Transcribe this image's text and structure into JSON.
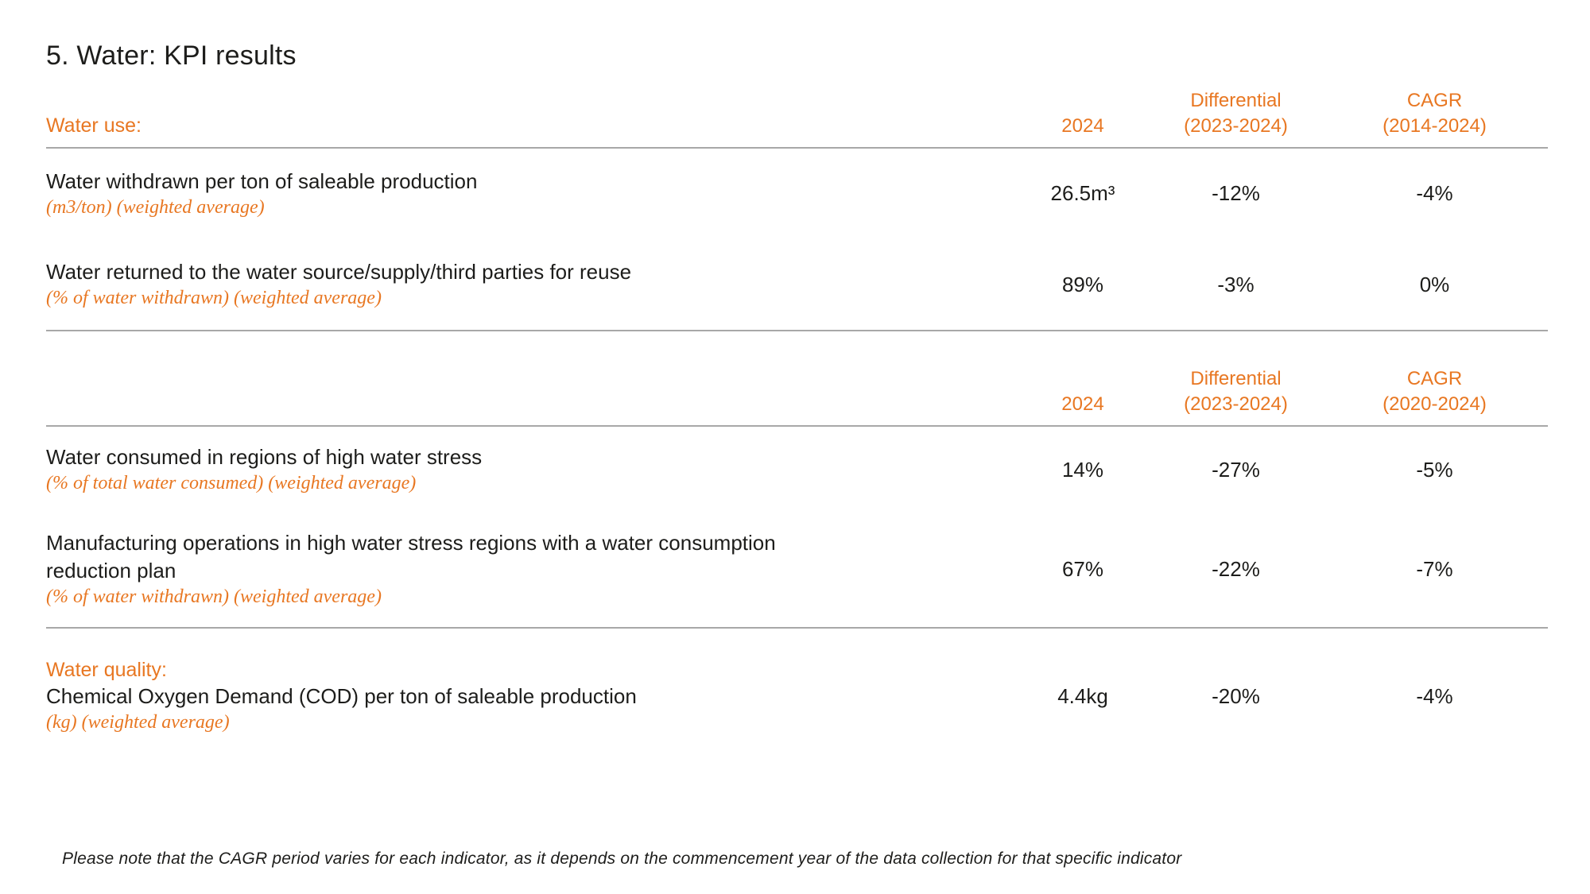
{
  "page": {
    "title": "5. Water: KPI results",
    "footnote": "Please note that the CAGR period varies for each indicator, as it depends on the commencement year of the data collection for that specific indicator"
  },
  "colors": {
    "accent_orange": "#E87722",
    "text_black": "#1D1D1B",
    "divider_gray": "#A8A8A8"
  },
  "table1": {
    "section_label": "Water use:",
    "columns": {
      "year": "2024",
      "differential": [
        "Differential",
        "(2023-2024)"
      ],
      "cagr": [
        "CAGR",
        "(2014-2024)"
      ]
    },
    "rows": [
      {
        "name": "Water withdrawn per ton of saleable production",
        "unit": "(m3/ton) (weighted average)",
        "year": "26.5m³",
        "differential": "-12%",
        "cagr": "-4%"
      },
      {
        "name": "Water returned to the water source/supply/third parties for reuse",
        "unit": "(% of water withdrawn) (weighted average)",
        "year": "89%",
        "differential": "-3%",
        "cagr": "0%"
      }
    ]
  },
  "table2": {
    "columns": {
      "year": "2024",
      "differential": [
        "Differential",
        "(2023-2024)"
      ],
      "cagr": [
        "CAGR",
        "(2020-2024)"
      ]
    },
    "rows": [
      {
        "name": "Water consumed in regions of high water stress",
        "unit": "(% of total water consumed) (weighted average)",
        "year": "14%",
        "differential": "-27%",
        "cagr": "-5%"
      },
      {
        "name": "Manufacturing operations in high water stress regions with a water consumption reduction plan",
        "unit": "(% of water withdrawn) (weighted average)",
        "year": "67%",
        "differential": "-22%",
        "cagr": "-7%"
      },
      {
        "section_label": "Water quality:",
        "name": "Chemical Oxygen Demand (COD) per ton of saleable production",
        "unit": "(kg) (weighted average)",
        "year": "4.4kg",
        "differential": "-20%",
        "cagr": "-4%"
      }
    ]
  }
}
